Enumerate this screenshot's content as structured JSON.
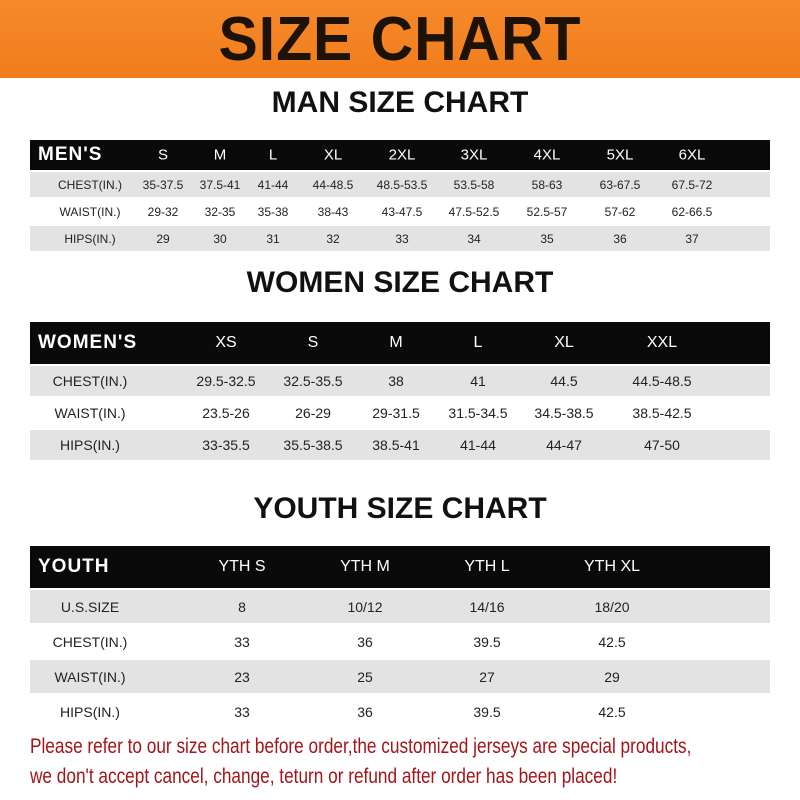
{
  "banner_title": "SIZE CHART",
  "tables": [
    {
      "title": "MAN SIZE CHART",
      "header": "MEN'S",
      "sizes": [
        "S",
        "M",
        "L",
        "XL",
        "2XL",
        "3XL",
        "4XL",
        "5XL",
        "6XL"
      ],
      "rows": [
        {
          "label": "CHEST(IN.)",
          "values": [
            "35-37.5",
            "37.5-41",
            "41-44",
            "44-48.5",
            "48.5-53.5",
            "53.5-58",
            "58-63",
            "63-67.5",
            "67.5-72"
          ]
        },
        {
          "label": "WAIST(IN.)",
          "values": [
            "29-32",
            "32-35",
            "35-38",
            "38-43",
            "43-47.5",
            "47.5-52.5",
            "52.5-57",
            "57-62",
            "62-66.5"
          ]
        },
        {
          "label": "HIPS(IN.)",
          "values": [
            "29",
            "30",
            "31",
            "32",
            "33",
            "34",
            "35",
            "36",
            "37"
          ]
        }
      ]
    },
    {
      "title": "WOMEN SIZE CHART",
      "header": "WOMEN'S",
      "sizes": [
        "XS",
        "S",
        "M",
        "L",
        "XL",
        "XXL"
      ],
      "rows": [
        {
          "label": "CHEST(IN.)",
          "values": [
            "29.5-32.5",
            "32.5-35.5",
            "38",
            "41",
            "44.5",
            "44.5-48.5"
          ]
        },
        {
          "label": "WAIST(IN.)",
          "values": [
            "23.5-26",
            "26-29",
            "29-31.5",
            "31.5-34.5",
            "34.5-38.5",
            "38.5-42.5"
          ]
        },
        {
          "label": "HIPS(IN.)",
          "values": [
            "33-35.5",
            "35.5-38.5",
            "38.5-41",
            "41-44",
            "44-47",
            "47-50"
          ]
        }
      ]
    },
    {
      "title": "YOUTH SIZE CHART",
      "header": "YOUTH",
      "sizes": [
        "YTH S",
        "YTH M",
        "YTH L",
        "YTH XL"
      ],
      "rows": [
        {
          "label": "U.S.SIZE",
          "values": [
            "8",
            "10/12",
            "14/16",
            "18/20"
          ]
        },
        {
          "label": "CHEST(IN.)",
          "values": [
            "33",
            "36",
            "39.5",
            "42.5"
          ]
        },
        {
          "label": "WAIST(IN.)",
          "values": [
            "23",
            "25",
            "27",
            "29"
          ]
        },
        {
          "label": "HIPS(IN.)",
          "values": [
            "33",
            "36",
            "39.5",
            "42.5"
          ]
        }
      ]
    }
  ],
  "notice": [
    "Please refer to our size chart before order,the customized jerseys are special products,",
    "we don't accept cancel, change, teturn or refund after order has been placed!"
  ]
}
